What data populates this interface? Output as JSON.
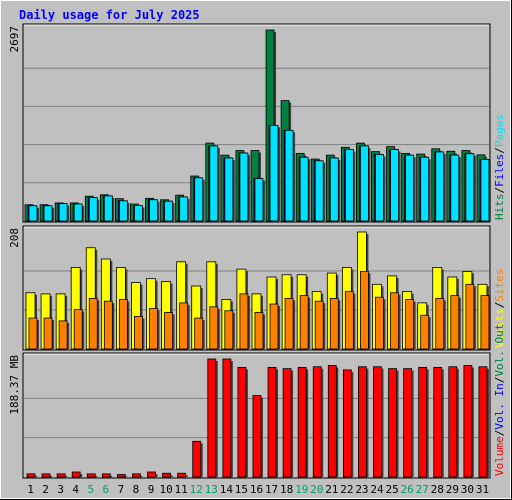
{
  "chart_data": {
    "type": "bar",
    "title": "Daily usage for July 2025",
    "categories": [
      "1",
      "2",
      "3",
      "4",
      "5",
      "6",
      "7",
      "8",
      "9",
      "10",
      "11",
      "12",
      "13",
      "14",
      "15",
      "16",
      "17",
      "18",
      "19",
      "20",
      "21",
      "22",
      "23",
      "24",
      "25",
      "26",
      "27",
      "28",
      "29",
      "30",
      "31"
    ],
    "weekend_days": [
      "5",
      "6",
      "12",
      "13",
      "19",
      "20",
      "26",
      "27"
    ],
    "panels": [
      {
        "id": "hits-files-pages",
        "max_label": "2697",
        "ylim": [
          0,
          2697
        ],
        "side_labels": [
          {
            "text": "Hits",
            "color": "#008040"
          },
          {
            "text": "/",
            "color": "#000000"
          },
          {
            "text": "Files",
            "color": "#0000ff"
          },
          {
            "text": "/",
            "color": "#000000"
          },
          {
            "text": "Pages",
            "color": "#00e0ff"
          }
        ],
        "series": [
          {
            "name": "Hits",
            "color": "#008040",
            "values": [
              230,
              230,
              255,
              255,
              350,
              370,
              315,
              240,
              320,
              300,
              365,
              635,
              1100,
              930,
              995,
              995,
              2697,
              1700,
              955,
              875,
              930,
              1040,
              1100,
              980,
              1050,
              955,
              945,
              1020,
              985,
              995,
              935
            ]
          },
          {
            "name": "Files",
            "color": "#0000ff",
            "values": [
              215,
              215,
              245,
              240,
              330,
              355,
              285,
              220,
              300,
              280,
              340,
              610,
              1060,
              890,
              960,
              600,
              1350,
              1280,
              900,
              850,
              890,
              1010,
              1060,
              940,
              1010,
              930,
              900,
              975,
              930,
              950,
              870
            ]
          },
          {
            "name": "Pages",
            "color": "#00e0ff",
            "values": [
              215,
              215,
              245,
              240,
              330,
              355,
              285,
              220,
              300,
              280,
              340,
              610,
              1060,
              890,
              960,
              600,
              1350,
              1280,
              900,
              850,
              890,
              1010,
              1060,
              940,
              1010,
              930,
              900,
              975,
              930,
              950,
              870
            ]
          }
        ]
      },
      {
        "id": "visits-sites",
        "max_label": "208",
        "ylim": [
          0,
          208
        ],
        "side_labels": [
          {
            "text": "Visits",
            "color": "#ffff00"
          },
          {
            "text": "/",
            "color": "#000000"
          },
          {
            "text": "Sites",
            "color": "#ff8000"
          }
        ],
        "series": [
          {
            "name": "Visits",
            "color": "#ffff00",
            "values": [
              100,
              98,
              98,
              145,
              180,
              160,
              145,
              118,
              125,
              120,
              155,
              112,
              155,
              88,
              142,
              98,
              128,
              132,
              132,
              102,
              135,
              145,
              208,
              115,
              130,
              102,
              82,
              145,
              128,
              138,
              115
            ]
          },
          {
            "name": "Sites",
            "color": "#ff8000",
            "values": [
              55,
              55,
              50,
              70,
              90,
              85,
              88,
              58,
              72,
              65,
              82,
              55,
              75,
              68,
              98,
              65,
              80,
              90,
              95,
              85,
              90,
              102,
              138,
              92,
              100,
              88,
              60,
              90,
              95,
              115,
              95
            ]
          }
        ]
      },
      {
        "id": "volume",
        "max_label": "188.37 MB",
        "ylim": [
          0,
          188.37
        ],
        "side_labels": [
          {
            "text": "Volume",
            "color": "#ff0000"
          },
          {
            "text": "/",
            "color": "#000000"
          },
          {
            "text": "Vol. In",
            "color": "#0000ff"
          },
          {
            "text": "/",
            "color": "#000000"
          },
          {
            "text": "Vol. Out",
            "color": "#008040"
          }
        ],
        "series": [
          {
            "name": "Volume",
            "color": "#ff0000",
            "values": [
              5,
              5,
              5,
              8,
              5,
              5,
              4,
              5,
              8,
              6,
              6,
              57,
              188.37,
              188.37,
              175,
              130,
              175,
              173,
              175,
              176,
              178,
              171,
              176,
              176,
              173,
              173,
              175,
              175,
              176,
              178,
              176
            ]
          }
        ]
      }
    ],
    "colors": {
      "background": "#c0c0c0",
      "title": "#0000ff",
      "grid": "#808080",
      "weekend_label": "#00a060",
      "weekday_label": "#000000"
    }
  }
}
